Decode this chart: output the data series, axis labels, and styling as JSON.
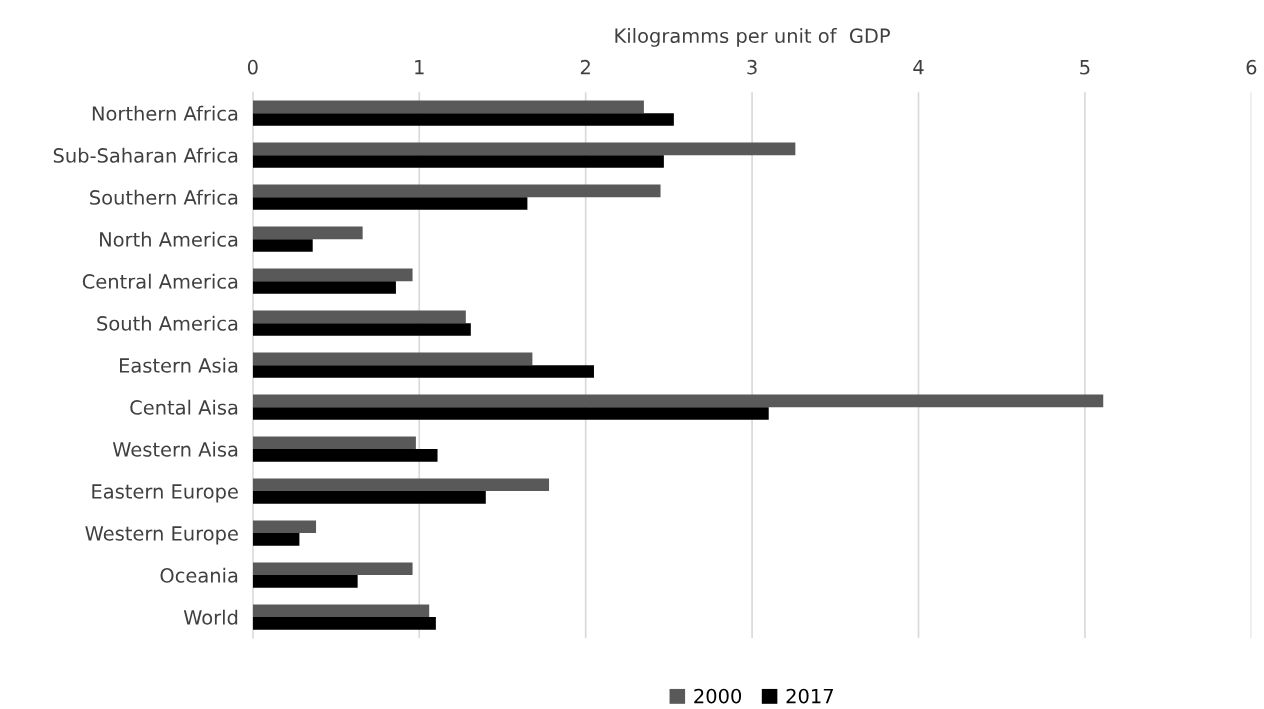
{
  "chart_data": {
    "type": "bar",
    "orientation": "horizontal",
    "xlabel": "Kilogramms per unit of  GDP",
    "categories": [
      "Northern Africa",
      "Sub-Saharan Africa",
      "Southern Africa",
      "North America",
      "Central America",
      "South America",
      "Eastern Asia",
      "Cental Aisa",
      "Western Aisa",
      "Eastern Europe",
      "Western Europe",
      "Oceania",
      "World"
    ],
    "series": [
      {
        "name": "2000",
        "color": "#595959",
        "values": [
          2.35,
          3.26,
          2.45,
          0.66,
          0.96,
          1.28,
          1.68,
          5.11,
          0.98,
          1.78,
          0.38,
          0.96,
          1.06
        ]
      },
      {
        "name": "2017",
        "color": "#000000",
        "values": [
          2.53,
          2.47,
          1.65,
          0.36,
          0.86,
          1.31,
          2.05,
          3.1,
          1.11,
          1.4,
          0.28,
          0.63,
          1.1
        ]
      }
    ],
    "xlim": [
      0,
      6
    ],
    "xticks": [
      0,
      1,
      2,
      3,
      4,
      5,
      6
    ],
    "grid": "x",
    "legend": "bottom"
  }
}
